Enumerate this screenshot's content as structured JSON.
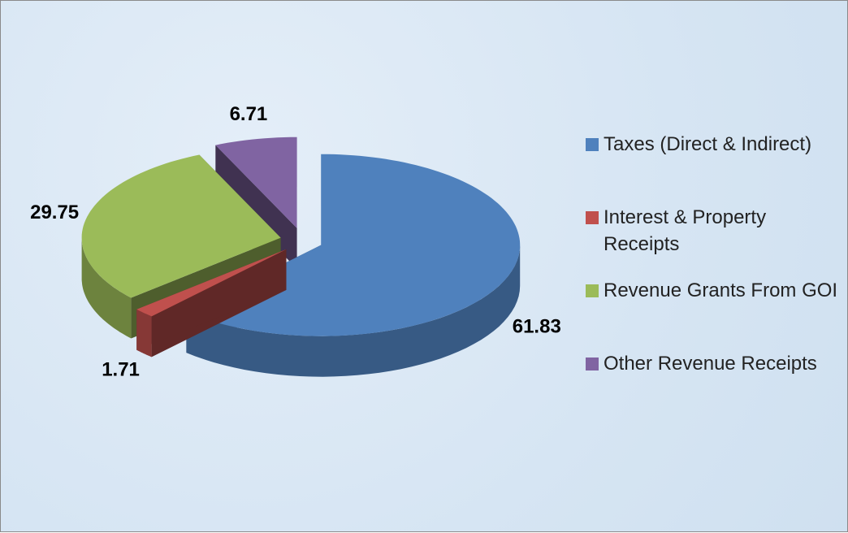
{
  "chart_data": {
    "type": "pie3d",
    "categories": [
      "Taxes (Direct & Indirect)",
      "Interest & Property Receipts",
      "Revenue Grants From GOI",
      "Other Revenue Receipts"
    ],
    "values": [
      61.83,
      1.71,
      29.75,
      6.71
    ],
    "colors": [
      "#4f81bd",
      "#c0504d",
      "#9bbb59",
      "#8064a2"
    ],
    "legend": "right"
  }
}
